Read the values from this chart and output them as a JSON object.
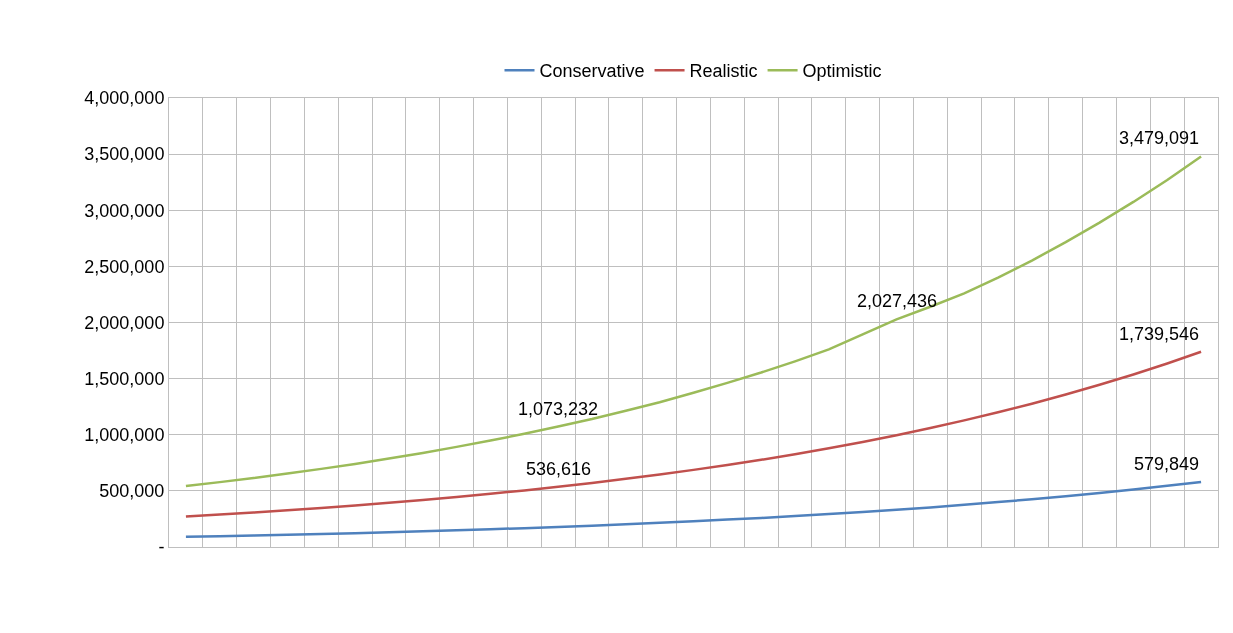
{
  "chart_data": {
    "type": "line",
    "categories": [
      null,
      null,
      null,
      null,
      null,
      null,
      null,
      null,
      null,
      null,
      null,
      null,
      null,
      null,
      null,
      null,
      null,
      null,
      null,
      null,
      null,
      null,
      null,
      null,
      null,
      null,
      null,
      null,
      null,
      null,
      null
    ],
    "series": [
      {
        "name": "Conservative",
        "color": "#4f81bd",
        "values": [
          91000,
          96000,
          102000,
          109000,
          116000,
          123000,
          131000,
          140000,
          149000,
          158000,
          168000,
          179000,
          190000,
          202000,
          215000,
          229000,
          244000,
          259000,
          276000,
          293000,
          312000,
          332000,
          353000,
          376000,
          400000,
          425000,
          453000,
          482000,
          512000,
          545000,
          579849
        ],
        "value_labels": [
          null,
          null,
          null,
          null,
          null,
          null,
          null,
          null,
          null,
          null,
          null,
          null,
          null,
          null,
          null,
          null,
          null,
          null,
          null,
          null,
          null,
          null,
          null,
          null,
          null,
          null,
          null,
          null,
          null,
          null,
          "579,849"
        ]
      },
      {
        "name": "Realistic",
        "color": "#c0504d",
        "values": [
          272000,
          289000,
          307000,
          327000,
          348000,
          370000,
          394000,
          419000,
          446000,
          474000,
          504000,
          536616,
          570000,
          607000,
          645000,
          687000,
          731000,
          777000,
          827000,
          880000,
          936000,
          996000,
          1060000,
          1128000,
          1200000,
          1276000,
          1358000,
          1445000,
          1537000,
          1635000,
          1739546
        ],
        "value_labels": [
          null,
          null,
          null,
          null,
          null,
          null,
          null,
          null,
          null,
          null,
          null,
          "536,616",
          null,
          null,
          null,
          null,
          null,
          null,
          null,
          null,
          null,
          null,
          null,
          null,
          null,
          null,
          null,
          null,
          null,
          null,
          "1,739,546"
        ]
      },
      {
        "name": "Optimistic",
        "color": "#9bbb59",
        "values": [
          544000,
          578000,
          614000,
          654000,
          696000,
          740000,
          788000,
          838000,
          892000,
          948000,
          1008000,
          1073232,
          1140000,
          1214000,
          1290000,
          1374000,
          1462000,
          1554000,
          1654000,
          1760000,
          1895000,
          2027436,
          2140000,
          2260000,
          2400000,
          2552000,
          2716000,
          2890000,
          3074000,
          3270000,
          3479091
        ],
        "value_labels": [
          null,
          null,
          null,
          null,
          null,
          null,
          null,
          null,
          null,
          null,
          null,
          "1,073,232",
          null,
          null,
          null,
          null,
          null,
          null,
          null,
          null,
          null,
          "2,027,436",
          null,
          null,
          null,
          null,
          null,
          null,
          null,
          null,
          "3,479,091"
        ]
      }
    ],
    "ylim": [
      0,
      4000000
    ],
    "yticks": [
      {
        "value": 0,
        "label": "-"
      },
      {
        "value": 500000,
        "label": "500,000"
      },
      {
        "value": 1000000,
        "label": "1,000,000"
      },
      {
        "value": 1500000,
        "label": "1,500,000"
      },
      {
        "value": 2000000,
        "label": "2,000,000"
      },
      {
        "value": 2500000,
        "label": "2,500,000"
      },
      {
        "value": 3000000,
        "label": "3,000,000"
      },
      {
        "value": 3500000,
        "label": "3,500,000"
      },
      {
        "value": 4000000,
        "label": "4,000,000"
      }
    ],
    "grid": true,
    "legend": "top",
    "marker": "none",
    "line_style": "solid",
    "tick_labels": "y"
  }
}
